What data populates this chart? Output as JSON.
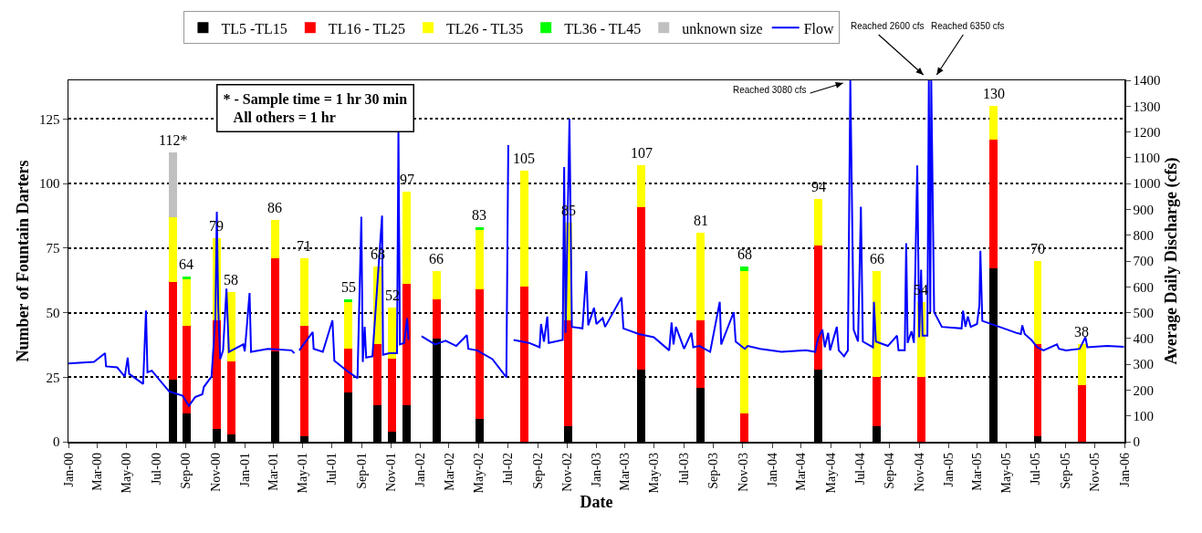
{
  "chart_data": {
    "type": "bar",
    "stacked": true,
    "xlabel": "Date",
    "ylabel": "Number of Fountain Darters",
    "y2label": "Average Daily Discharge (cfs)",
    "x": [
      "2000-08-04",
      "2000-09-02",
      "2000-11-03",
      "2000-12-04",
      "2001-03-05",
      "2001-05-04",
      "2001-08-04",
      "2001-10-04",
      "2001-11-03",
      "2001-12-03",
      "2002-02-03",
      "2002-05-03",
      "2002-08-04",
      "2002-11-04",
      "2003-04-04",
      "2003-08-05",
      "2003-11-04",
      "2004-04-06",
      "2004-08-05",
      "2004-11-05",
      "2005-04-05",
      "2005-07-05",
      "2005-10-04"
    ],
    "series": [
      {
        "name": "TL5 -TL15",
        "color": "#000000",
        "values": [
          24,
          11,
          5,
          3,
          35,
          2,
          19,
          14,
          4,
          14,
          40,
          9,
          0,
          6,
          28,
          21,
          0,
          28,
          6,
          0,
          67,
          2,
          0
        ]
      },
      {
        "name": "TL16 - TL25",
        "color": "#ff0000",
        "values": [
          38,
          34,
          42,
          28,
          36,
          43,
          17,
          24,
          28,
          47,
          15,
          50,
          60,
          41,
          63,
          26,
          11,
          48,
          19,
          25,
          50,
          36,
          22
        ]
      },
      {
        "name": "TL26 - TL35",
        "color": "#ffff00",
        "values": [
          25,
          18,
          32,
          27,
          15,
          26,
          18,
          30,
          20,
          36,
          11,
          23,
          45,
          38,
          16,
          34,
          55,
          18,
          41,
          29,
          13,
          32,
          16
        ]
      },
      {
        "name": "TL36 - TL45",
        "color": "#00ff00",
        "values": [
          0,
          1,
          0,
          0,
          0,
          0,
          1,
          0,
          0,
          0,
          0,
          1,
          0,
          0,
          0,
          0,
          2,
          0,
          0,
          0,
          0,
          0,
          0
        ]
      },
      {
        "name": "unknown size",
        "color": "#c0c0c0",
        "values": [
          25,
          0,
          0,
          0,
          0,
          0,
          0,
          0,
          0,
          0,
          0,
          0,
          0,
          0,
          0,
          0,
          0,
          0,
          0,
          0,
          0,
          0,
          0
        ]
      },
      {
        "name": "Flow",
        "type": "line",
        "axis": "y2",
        "color": "#0000ff",
        "x": [
          "2000-01-01",
          "2000-02-23",
          "2000-03-17",
          "2000-03-19",
          "2000-04-11",
          "2000-04-27",
          "2000-05-03",
          "2000-05-06",
          "2000-06-04",
          "2000-06-10",
          "2000-06-13",
          "2000-06-22",
          "2000-07-28",
          "2000-08-25",
          "2000-09-07",
          "2000-09-20",
          "2000-10-05",
          "2000-10-08",
          "2000-10-24",
          "2000-11-01",
          "2000-11-04",
          "2000-11-07",
          "2000-11-11",
          "2000-11-17",
          "2000-11-24",
          "2000-11-29",
          "2000-12-29",
          "2001-01-01",
          "2001-01-11",
          "2001-01-14",
          "2001-02-18",
          "2001-04-08",
          "2001-04-14",
          "2001-04-19",
          "2001-04-24",
          "2001-05-22",
          "2001-05-24",
          "2001-06-12",
          "2001-07-02",
          "2001-07-06",
          "2001-08-01",
          "2001-08-23",
          "2001-08-31",
          "2001-09-03",
          "2001-09-07",
          "2001-09-10",
          "2001-09-23",
          "2001-10-13",
          "2001-10-15",
          "2001-10-28",
          "2001-11-13",
          "2001-11-16",
          "2001-11-19",
          "2001-11-28",
          "2001-12-04",
          "2001-12-07",
          "2001-12-20",
          "2002-01-03",
          "2002-01-31",
          "2002-02-22",
          "2002-03-16",
          "2002-04-07",
          "2002-04-10",
          "2002-04-28",
          "2002-05-30",
          "2002-06-28",
          "2002-07-02",
          "2002-07-07",
          "2002-07-13",
          "2002-08-14",
          "2002-09-05",
          "2002-09-08",
          "2002-09-14",
          "2002-09-21",
          "2002-09-24",
          "2002-10-23",
          "2002-10-26",
          "2002-10-29",
          "2002-11-06",
          "2002-11-11",
          "2002-12-03",
          "2002-12-11",
          "2002-12-15",
          "2002-12-27",
          "2003-01-01",
          "2003-01-14",
          "2003-01-19",
          "2003-02-22",
          "2003-02-26",
          "2003-03-30",
          "2003-04-30",
          "2003-06-01",
          "2003-06-06",
          "2003-06-10",
          "2003-06-15",
          "2003-07-02",
          "2003-07-17",
          "2003-07-21",
          "2003-08-03",
          "2003-08-25",
          "2003-09-14",
          "2003-09-17",
          "2003-10-13",
          "2003-10-17",
          "2003-11-05",
          "2003-11-11",
          "2003-12-07",
          "2004-01-20",
          "2004-03-11",
          "2004-03-30",
          "2004-04-05",
          "2004-04-14",
          "2004-04-19",
          "2004-04-26",
          "2004-04-30",
          "2004-05-14",
          "2004-05-18",
          "2004-05-29",
          "2004-06-06",
          "2004-06-11",
          "2004-06-18",
          "2004-06-27",
          "2004-07-03",
          "2004-07-07",
          "2004-07-28",
          "2004-07-30",
          "2004-08-03",
          "2004-08-28",
          "2004-09-16",
          "2004-09-19",
          "2004-10-02",
          "2004-10-05",
          "2004-10-08",
          "2004-10-16",
          "2004-10-21",
          "2004-10-28",
          "2004-11-01",
          "2004-11-05",
          "2004-11-08",
          "2004-11-18",
          "2004-11-21",
          "2004-11-24",
          "2004-11-26",
          "2004-12-02",
          "2004-12-18",
          "2005-01-28",
          "2005-01-31",
          "2005-02-05",
          "2005-02-10",
          "2005-02-16",
          "2005-03-01",
          "2005-03-06",
          "2005-03-08",
          "2005-03-12",
          "2005-04-07",
          "2005-04-26",
          "2005-05-21",
          "2005-05-31",
          "2005-06-03",
          "2005-06-08",
          "2005-06-22",
          "2005-07-04",
          "2005-07-17",
          "2005-08-14",
          "2005-08-18",
          "2005-09-02",
          "2005-09-30",
          "2005-10-12",
          "2005-10-16",
          "2005-11-26",
          "2005-12-31"
        ],
        "values": [
          303,
          309,
          343,
          292,
          288,
          252,
          326,
          263,
          224,
          508,
          269,
          275,
          195,
          178,
          139,
          173,
          184,
          212,
          252,
          479,
          891,
          513,
          320,
          354,
          593,
          348,
          377,
          350,
          576,
          348,
          360,
          354,
          343,
          null,
          354,
          425,
          360,
          348,
          470,
          314,
          275,
          246,
          871,
          309,
          445,
          326,
          331,
          876,
          337,
          343,
          343,
          1200,
          377,
          383,
          479,
          394,
          null,
          409,
          377,
          391,
          371,
          413,
          360,
          354,
          320,
          250,
          1149,
          null,
          394,
          383,
          366,
          456,
          388,
          485,
          383,
          394,
          1064,
          422,
          1251,
          445,
          439,
          661,
          451,
          519,
          456,
          479,
          445,
          559,
          439,
          417,
          405,
          354,
          462,
          377,
          445,
          360,
          422,
          366,
          371,
          348,
          542,
          377,
          502,
          388,
          360,
          371,
          360,
          348,
          354,
          348,
          400,
          434,
          366,
          422,
          354,
          445,
          354,
          331,
          354,
          1400,
          434,
          388,
          910,
          388,
          366,
          542,
          388,
          371,
          411,
          354,
          354,
          769,
          383,
          428,
          383,
          1070,
          405,
          666,
          411,
          411,
          1400,
          502,
          1400,
          502,
          445,
          439,
          508,
          445,
          485,
          445,
          456,
          530,
          740,
          468,
          451,
          439,
          422,
          417,
          451,
          417,
          394,
          366,
          354,
          377,
          360,
          354,
          360,
          405,
          366,
          371,
          368
        ]
      }
    ],
    "totals": [
      "112*",
      "64",
      "79",
      "58",
      "86",
      "71",
      "55",
      "68",
      "52",
      "97",
      "66",
      "83",
      "105",
      "85",
      "107",
      "81",
      "68",
      "94",
      "66",
      "54",
      "130",
      "70",
      "38"
    ],
    "xlim": [
      "2000-01-01",
      "2006-01-01"
    ],
    "xticks": [
      {
        "value": "2000-01-01",
        "label": "Jan-00"
      },
      {
        "value": "2000-03-01",
        "label": "Mar-00"
      },
      {
        "value": "2000-05-01",
        "label": "May-00"
      },
      {
        "value": "2000-07-01",
        "label": "Jul-00"
      },
      {
        "value": "2000-09-01",
        "label": "Sep-00"
      },
      {
        "value": "2000-11-01",
        "label": "Nov-00"
      },
      {
        "value": "2001-01-01",
        "label": "Jan-01"
      },
      {
        "value": "2001-03-01",
        "label": "Mar-01"
      },
      {
        "value": "2001-05-01",
        "label": "May-01"
      },
      {
        "value": "2001-07-01",
        "label": "Jul-01"
      },
      {
        "value": "2001-09-01",
        "label": "Sep-01"
      },
      {
        "value": "2001-11-01",
        "label": "Nov-01"
      },
      {
        "value": "2002-01-01",
        "label": "Jan-02"
      },
      {
        "value": "2002-03-01",
        "label": "Mar-02"
      },
      {
        "value": "2002-05-01",
        "label": "May-02"
      },
      {
        "value": "2002-07-01",
        "label": "Jul-02"
      },
      {
        "value": "2002-09-01",
        "label": "Sep-02"
      },
      {
        "value": "2002-11-01",
        "label": "Nov-02"
      },
      {
        "value": "2003-01-01",
        "label": "Jan-03"
      },
      {
        "value": "2003-03-01",
        "label": "Mar-03"
      },
      {
        "value": "2003-05-01",
        "label": "May-03"
      },
      {
        "value": "2003-07-01",
        "label": "Jul-03"
      },
      {
        "value": "2003-09-01",
        "label": "Sep-03"
      },
      {
        "value": "2003-11-01",
        "label": "Nov-03"
      },
      {
        "value": "2004-01-01",
        "label": "Jan-04"
      },
      {
        "value": "2004-03-01",
        "label": "Mar-04"
      },
      {
        "value": "2004-05-01",
        "label": "May-04"
      },
      {
        "value": "2004-07-01",
        "label": "Jul-04"
      },
      {
        "value": "2004-09-01",
        "label": "Sep-04"
      },
      {
        "value": "2004-11-01",
        "label": "Nov-04"
      },
      {
        "value": "2005-01-01",
        "label": "Jan-05"
      },
      {
        "value": "2005-03-01",
        "label": "Mar-05"
      },
      {
        "value": "2005-05-01",
        "label": "May-05"
      },
      {
        "value": "2005-07-01",
        "label": "Jul-05"
      },
      {
        "value": "2005-09-01",
        "label": "Sep-05"
      },
      {
        "value": "2005-11-01",
        "label": "Nov-05"
      },
      {
        "value": "2006-01-01",
        "label": "Jan-06"
      }
    ],
    "ylim": [
      0,
      140
    ],
    "yticks": [
      0,
      25,
      50,
      75,
      100,
      125
    ],
    "y2lim": [
      0,
      1400
    ],
    "y2ticks": [
      0,
      100,
      200,
      300,
      400,
      500,
      600,
      700,
      800,
      900,
      1000,
      1100,
      1200,
      1300,
      1400
    ],
    "grid": "y",
    "legend": "top",
    "annotations": [
      "* - Sample time = 1 hr 30 min\nAll others = 1 hr",
      "Reached 3080 cfs",
      "Reached 2600 cfs",
      "Reached 6350 cfs"
    ]
  }
}
